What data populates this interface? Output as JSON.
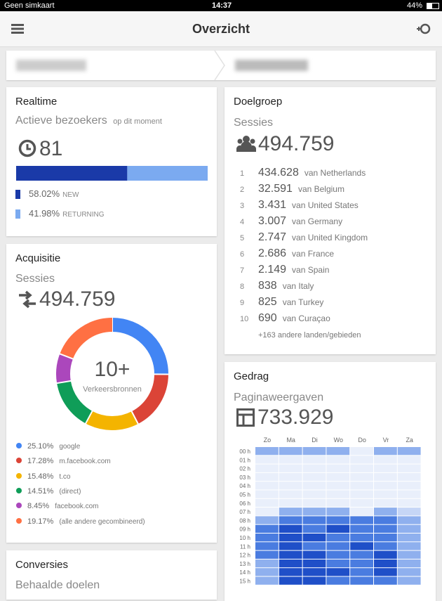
{
  "status_bar": {
    "carrier": "Geen simkaart",
    "time": "14:37",
    "battery": "44%"
  },
  "header": {
    "title": "Overzicht"
  },
  "realtime": {
    "title": "Realtime",
    "metric": "Actieve bezoekers",
    "note": "op dit moment",
    "count": "81",
    "segments": [
      {
        "share": {
          "value": 58.02,
          "label": "58.02%"
        },
        "name": "NEW",
        "color": "#1a3aa8"
      },
      {
        "share": {
          "value": 41.98,
          "label": "41.98%"
        },
        "name": "RETURNING",
        "color": "#7baaf0"
      }
    ]
  },
  "acquisition": {
    "title": "Acquisitie",
    "metric": "Sessies",
    "total": "494.759",
    "center": "10+",
    "center_label": "Verkeersbronnen",
    "sources": [
      {
        "share": {
          "value": 25.1,
          "label": "25.10%"
        },
        "name": "google",
        "color": "#4285f4"
      },
      {
        "share": {
          "value": 17.28,
          "label": "17.28%"
        },
        "name": "m.facebook.com",
        "color": "#db4437"
      },
      {
        "share": {
          "value": 15.48,
          "label": "15.48%"
        },
        "name": "t.co",
        "color": "#f4b400"
      },
      {
        "share": {
          "value": 14.51,
          "label": "14.51%"
        },
        "name": "(direct)",
        "color": "#0f9d58"
      },
      {
        "share": {
          "value": 8.45,
          "label": "8.45%"
        },
        "name": "facebook.com",
        "color": "#ab47bc"
      },
      {
        "share": {
          "value": 19.17,
          "label": "19.17%"
        },
        "name": "(alle andere gecombineerd)",
        "color": "#ff7043"
      }
    ]
  },
  "conversions": {
    "title": "Conversies",
    "metric": "Behaalde doelen"
  },
  "audience": {
    "title": "Doelgroep",
    "metric": "Sessies",
    "total": "494.759",
    "rows": [
      {
        "rank": "1",
        "value": "434.628",
        "label": "van Netherlands"
      },
      {
        "rank": "2",
        "value": "32.591",
        "label": "van Belgium"
      },
      {
        "rank": "3",
        "value": "3.431",
        "label": "van United States"
      },
      {
        "rank": "4",
        "value": "3.007",
        "label": "van Germany"
      },
      {
        "rank": "5",
        "value": "2.747",
        "label": "van United Kingdom"
      },
      {
        "rank": "6",
        "value": "2.686",
        "label": "van France"
      },
      {
        "rank": "7",
        "value": "2.149",
        "label": "van Spain"
      },
      {
        "rank": "8",
        "value": "838",
        "label": "van Italy"
      },
      {
        "rank": "9",
        "value": "825",
        "label": "van Turkey"
      },
      {
        "rank": "10",
        "value": "690",
        "label": "van Curaçao"
      }
    ],
    "more": "+163 andere landen/gebieden"
  },
  "behavior": {
    "title": "Gedrag",
    "metric": "Paginaweergaven",
    "total": "733.929",
    "days": [
      "Zo",
      "Ma",
      "Di",
      "Wo",
      "Do",
      "Vr",
      "Za"
    ],
    "hours": [
      "00 h",
      "01 h",
      "02 h",
      "03 h",
      "04 h",
      "05 h",
      "06 h",
      "07 h",
      "08 h",
      "09 h",
      "10 h",
      "11 h",
      "12 h",
      "13 h",
      "14 h",
      "15 h"
    ],
    "colors": [
      "#e9effb",
      "#c6d6f6",
      "#8fb0ee",
      "#4a7ce0",
      "#1f4fc8"
    ],
    "levels": [
      [
        2,
        2,
        2,
        2,
        0,
        2,
        2
      ],
      [
        0,
        0,
        0,
        0,
        0,
        0,
        0
      ],
      [
        0,
        0,
        0,
        0,
        0,
        0,
        0
      ],
      [
        0,
        0,
        0,
        0,
        0,
        0,
        0
      ],
      [
        0,
        0,
        0,
        0,
        0,
        0,
        0
      ],
      [
        0,
        0,
        0,
        0,
        0,
        0,
        0
      ],
      [
        0,
        0,
        0,
        0,
        0,
        0,
        0
      ],
      [
        0,
        2,
        2,
        2,
        0,
        2,
        1
      ],
      [
        2,
        3,
        3,
        3,
        3,
        3,
        2
      ],
      [
        3,
        4,
        3,
        4,
        3,
        3,
        2
      ],
      [
        3,
        4,
        4,
        3,
        3,
        3,
        2
      ],
      [
        3,
        4,
        3,
        3,
        4,
        3,
        2
      ],
      [
        3,
        4,
        4,
        3,
        3,
        4,
        2
      ],
      [
        2,
        4,
        4,
        3,
        3,
        4,
        2
      ],
      [
        2,
        4,
        4,
        4,
        3,
        4,
        2
      ],
      [
        2,
        4,
        4,
        3,
        3,
        3,
        2
      ]
    ]
  }
}
